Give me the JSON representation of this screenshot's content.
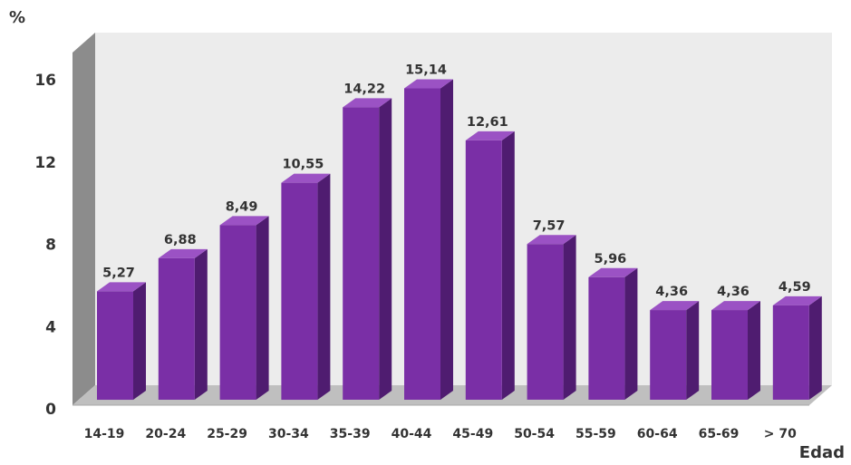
{
  "chart_data": {
    "type": "bar",
    "ylabel": "%",
    "xlabel": "Edad",
    "ylim": [
      0,
      16
    ],
    "yticks": [
      0,
      4,
      8,
      12,
      16
    ],
    "grid": false,
    "style": "3d-column",
    "colors": {
      "bar_front": "#7a2fa6",
      "bar_side": "#4f1c70",
      "bar_top": "#9b52c4",
      "wall": "#ececec",
      "floor": "#bfbfbf"
    },
    "categories": [
      "14-19",
      "20-24",
      "25-29",
      "30-34",
      "35-39",
      "40-44",
      "45-49",
      "50-54",
      "55-59",
      "60-64",
      "65-69",
      "> 70"
    ],
    "values": [
      5.27,
      6.88,
      8.49,
      10.55,
      14.22,
      15.14,
      12.61,
      7.57,
      5.96,
      4.36,
      4.36,
      4.59
    ],
    "value_labels": [
      "5,27",
      "6,88",
      "8,49",
      "10,55",
      "14,22",
      "15,14",
      "12,61",
      "7,57",
      "5,96",
      "4,36",
      "4,36",
      "4,59"
    ]
  }
}
